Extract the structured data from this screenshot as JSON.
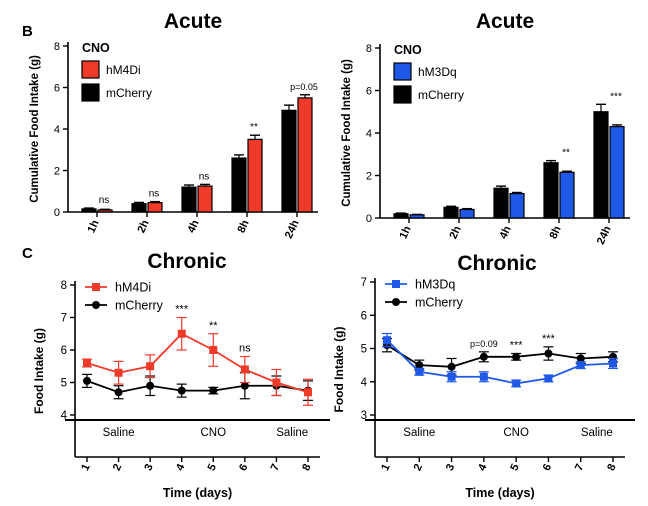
{
  "panel_labels": {
    "B": "B",
    "C": "C"
  },
  "colors": {
    "hm4di": "#f03a2a",
    "hm3dq": "#1f57e6",
    "mcherry": "#000000"
  },
  "chart_data": [
    {
      "type": "bar",
      "title": "Acute",
      "ylabel": "Cumulative Food Intake (g)",
      "ylim": [
        0,
        8
      ],
      "yticks": [
        "0",
        "2",
        "4",
        "6",
        "8"
      ],
      "categories": [
        "1h",
        "2h",
        "4h",
        "8h",
        "24h"
      ],
      "legend_title": "CNO",
      "series": [
        {
          "name": "mCherry",
          "color": "#000000",
          "values": [
            0.15,
            0.4,
            1.2,
            2.6,
            4.9
          ],
          "errors": [
            0.04,
            0.06,
            0.1,
            0.15,
            0.25
          ]
        },
        {
          "name": "hM4Di",
          "color": "#f03a2a",
          "values": [
            0.1,
            0.45,
            1.25,
            3.5,
            5.5
          ],
          "errors": [
            0.03,
            0.05,
            0.08,
            0.2,
            0.15
          ]
        }
      ],
      "annotations": [
        "ns",
        "ns",
        "ns",
        "**",
        "p=0.05"
      ]
    },
    {
      "type": "bar",
      "title": "Acute",
      "ylabel": "Cumulative Food Intake (g)",
      "ylim": [
        0,
        8
      ],
      "yticks": [
        "0",
        "2",
        "4",
        "6",
        "8"
      ],
      "categories": [
        "1h",
        "2h",
        "4h",
        "8h",
        "24h"
      ],
      "legend_title": "CNO",
      "series": [
        {
          "name": "mCherry",
          "color": "#000000",
          "values": [
            0.2,
            0.5,
            1.4,
            2.6,
            5.0
          ],
          "errors": [
            0.03,
            0.05,
            0.1,
            0.1,
            0.35
          ]
        },
        {
          "name": "hM3Dq",
          "color": "#1f57e6",
          "values": [
            0.15,
            0.4,
            1.15,
            2.15,
            4.3
          ],
          "errors": [
            0.02,
            0.04,
            0.05,
            0.05,
            0.08
          ]
        }
      ],
      "annotations": [
        "",
        "",
        "",
        "**",
        "***"
      ]
    },
    {
      "type": "line",
      "title": "Chronic",
      "ylabel": "Food Intake (g)",
      "xlabel": "Time (days)",
      "ylim": [
        4,
        8
      ],
      "yticks": [
        "4",
        "5",
        "6",
        "7",
        "8"
      ],
      "x": [
        1,
        2,
        3,
        4,
        5,
        6,
        7,
        8
      ],
      "series": [
        {
          "name": "hM4Di",
          "color": "#f03a2a",
          "marker": "square",
          "values": [
            5.6,
            5.3,
            5.5,
            6.5,
            6.0,
            5.4,
            5.0,
            4.7
          ],
          "errors": [
            0.12,
            0.35,
            0.35,
            0.5,
            0.5,
            0.4,
            0.4,
            0.4
          ]
        },
        {
          "name": "mCherry",
          "color": "#000000",
          "marker": "circle",
          "values": [
            5.05,
            4.7,
            4.9,
            4.75,
            4.75,
            4.9,
            4.9,
            4.75
          ],
          "errors": [
            0.2,
            0.2,
            0.3,
            0.2,
            0.1,
            0.4,
            0.3,
            0.3
          ]
        }
      ],
      "annotations": [
        {
          "x": 4,
          "text": "***"
        },
        {
          "x": 5,
          "text": "**"
        },
        {
          "x": 6,
          "text": "ns"
        }
      ],
      "phases": [
        {
          "label": "Saline",
          "from": 1,
          "to": 3
        },
        {
          "label": "CNO",
          "from": 4,
          "to": 6
        },
        {
          "label": "Saline",
          "from": 7,
          "to": 8
        }
      ]
    },
    {
      "type": "line",
      "title": "Chronic",
      "ylabel": "Food Intake (g)",
      "xlabel": "Time (days)",
      "ylim": [
        3,
        7
      ],
      "yticks": [
        "3",
        "4",
        "5",
        "6",
        "7"
      ],
      "x": [
        1,
        2,
        3,
        4,
        5,
        6,
        7,
        8
      ],
      "series": [
        {
          "name": "hM3Dq",
          "color": "#1f57e6",
          "marker": "square",
          "values": [
            5.25,
            4.3,
            4.15,
            4.15,
            3.95,
            4.1,
            4.5,
            4.55
          ],
          "errors": [
            0.2,
            0.1,
            0.15,
            0.15,
            0.1,
            0.1,
            0.1,
            0.15
          ]
        },
        {
          "name": "mCherry",
          "color": "#000000",
          "marker": "circle",
          "values": [
            5.1,
            4.5,
            4.45,
            4.75,
            4.75,
            4.85,
            4.7,
            4.75
          ],
          "errors": [
            0.2,
            0.15,
            0.25,
            0.15,
            0.1,
            0.2,
            0.15,
            0.15
          ]
        }
      ],
      "annotations": [
        {
          "x": 4,
          "text": "p=0.09"
        },
        {
          "x": 5,
          "text": "***"
        },
        {
          "x": 6,
          "text": "***"
        }
      ],
      "phases": [
        {
          "label": "Saline",
          "from": 1,
          "to": 3
        },
        {
          "label": "CNO",
          "from": 4,
          "to": 6
        },
        {
          "label": "Saline",
          "from": 7,
          "to": 8
        }
      ]
    }
  ]
}
